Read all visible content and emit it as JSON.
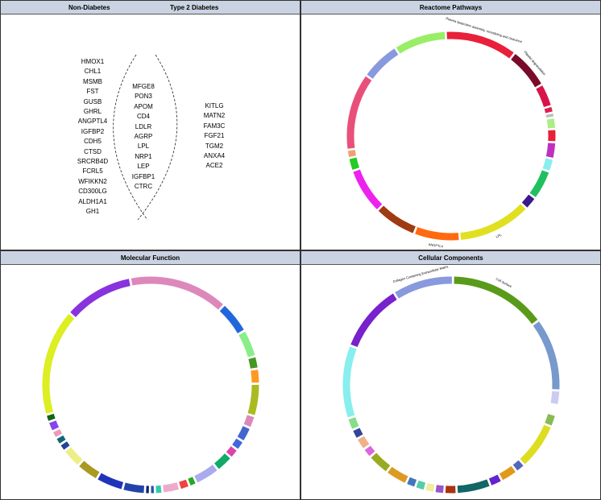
{
  "venn": {
    "non_diabetes_label": "Non-Diabetes",
    "type2_label": "Type 2 Diabetes",
    "non_diabetes_genes": [
      "HMOX1",
      "CHL1",
      "MSMB",
      "FST",
      "GUSB",
      "GHRL",
      "ANGPTL4",
      "IGFBP2",
      "CDH5",
      "CTSD",
      "SRCRB4D",
      "FCRL5",
      "WFIKKN2",
      "CD300LG",
      "ALDH1A1",
      "GH1"
    ],
    "shared_genes": [
      "MFGE8",
      "PON3",
      "APOM",
      "CD4",
      "LDLR",
      "AGRP",
      "LPL",
      "NRP1",
      "LEP",
      "IGFBP1",
      "CTRC"
    ],
    "type2_genes": [
      "KITLG",
      "MATN2",
      "FAM3C",
      "FGF21",
      "TGM2",
      "ANXA4",
      "ACE2"
    ]
  },
  "chart_data": [
    {
      "type": "chord",
      "title": "Reactome Pathways",
      "segments": [
        {
          "label": "Plasma lipoprotein assembly, remodeling and clearance",
          "value": 44,
          "color": "#e8203a"
        },
        {
          "label": "Platelet degranulation",
          "value": 25,
          "color": "#7a0a2a"
        },
        {
          "label": "",
          "value": 14,
          "color": "#d8134a"
        },
        {
          "label": "",
          "value": 4,
          "color": "#dd2050"
        },
        {
          "label": "",
          "value": 3,
          "color": "#bbbbbb"
        },
        {
          "label": "",
          "value": 7,
          "color": "#aaee88"
        },
        {
          "label": "",
          "value": 8,
          "color": "#e8203a"
        },
        {
          "label": "",
          "value": 10,
          "color": "#c030c0"
        },
        {
          "label": "",
          "value": 8,
          "color": "#88eeee"
        },
        {
          "label": "",
          "value": 18,
          "color": "#20c060"
        },
        {
          "label": "",
          "value": 8,
          "color": "#3a1a8a"
        },
        {
          "label": "LPL",
          "value": 45,
          "color": "#e0e020"
        },
        {
          "label": "ANGPTL4",
          "value": 28,
          "color": "#ff6a10"
        },
        {
          "label": "",
          "value": 26,
          "color": "#a03a10"
        },
        {
          "label": "",
          "value": 28,
          "color": "#ee22ee"
        },
        {
          "label": "",
          "value": 8,
          "color": "#22cc22"
        },
        {
          "label": "",
          "value": 5,
          "color": "#f0a070"
        },
        {
          "label": "",
          "value": 47,
          "color": "#e8507a"
        },
        {
          "label": "",
          "value": 24,
          "color": "#8899dd"
        },
        {
          "label": "",
          "value": 32,
          "color": "#99ee66"
        }
      ]
    },
    {
      "type": "chord",
      "title": "Molecular Function",
      "segments": [
        {
          "label": "",
          "value": 40,
          "color": "#dd88bb"
        },
        {
          "label": "",
          "value": 13,
          "color": "#2266dd"
        },
        {
          "label": "",
          "value": 11,
          "color": "#88ee88"
        },
        {
          "label": "",
          "value": 5,
          "color": "#449922"
        },
        {
          "label": "",
          "value": 6,
          "color": "#ff9922"
        },
        {
          "label": "",
          "value": 13,
          "color": "#aabb22"
        },
        {
          "label": "",
          "value": 5,
          "color": "#dd88bb"
        },
        {
          "label": "",
          "value": 6,
          "color": "#4466cc"
        },
        {
          "label": "",
          "value": 4,
          "color": "#4466dd"
        },
        {
          "label": "",
          "value": 4,
          "color": "#dd44aa"
        },
        {
          "label": "",
          "value": 7,
          "color": "#11aa66"
        },
        {
          "label": "",
          "value": 10,
          "color": "#aaaaee"
        },
        {
          "label": "",
          "value": 3,
          "color": "#22aa22"
        },
        {
          "label": "",
          "value": 4,
          "color": "#ee4444"
        },
        {
          "label": "",
          "value": 7,
          "color": "#eeaacc"
        },
        {
          "label": "",
          "value": 3,
          "color": "#33ccaa"
        },
        {
          "label": "",
          "value": 2,
          "color": "#2255aa"
        },
        {
          "label": "",
          "value": 2,
          "color": "#112266"
        },
        {
          "label": "",
          "value": 9,
          "color": "#2244aa"
        },
        {
          "label": "",
          "value": 11,
          "color": "#2233bb"
        },
        {
          "label": "",
          "value": 9,
          "color": "#aa9922"
        },
        {
          "label": "",
          "value": 8,
          "color": "#eeee88"
        },
        {
          "label": "",
          "value": 3,
          "color": "#224499"
        },
        {
          "label": "",
          "value": 3,
          "color": "#116677"
        },
        {
          "label": "",
          "value": 3,
          "color": "#ee99bb"
        },
        {
          "label": "",
          "value": 4,
          "color": "#8844ee"
        },
        {
          "label": "",
          "value": 3,
          "color": "#116611"
        },
        {
          "label": "",
          "value": 43,
          "color": "#ddee22"
        },
        {
          "label": "",
          "value": 28,
          "color": "#8833dd"
        }
      ]
    },
    {
      "type": "chord",
      "title": "Cellular Components",
      "segments": [
        {
          "label": "Cell Surface",
          "value": 40,
          "color": "#5a9a1a"
        },
        {
          "label": "",
          "value": 30,
          "color": "#7799cc"
        },
        {
          "label": "",
          "value": 6,
          "color": "#ccccf0"
        },
        {
          "label": "",
          "value": 4,
          "color": "#ffffff"
        },
        {
          "label": "",
          "value": 5,
          "color": "#88bb55"
        },
        {
          "label": "",
          "value": 19,
          "color": "#dddd22"
        },
        {
          "label": "",
          "value": 4,
          "color": "#5566bb"
        },
        {
          "label": "",
          "value": 7,
          "color": "#e09a1a"
        },
        {
          "label": "",
          "value": 5,
          "color": "#6622cc"
        },
        {
          "label": "",
          "value": 14,
          "color": "#116666"
        },
        {
          "label": "",
          "value": 5,
          "color": "#aa3311"
        },
        {
          "label": "",
          "value": 4,
          "color": "#9955cc"
        },
        {
          "label": "",
          "value": 4,
          "color": "#eeee99"
        },
        {
          "label": "",
          "value": 4,
          "color": "#55ccaa"
        },
        {
          "label": "",
          "value": 4,
          "color": "#4477bb"
        },
        {
          "label": "",
          "value": 9,
          "color": "#dd9922"
        },
        {
          "label": "",
          "value": 9,
          "color": "#99aa22"
        },
        {
          "label": "",
          "value": 4,
          "color": "#dd66dd"
        },
        {
          "label": "",
          "value": 5,
          "color": "#f0b088"
        },
        {
          "label": "",
          "value": 4,
          "color": "#334499"
        },
        {
          "label": "",
          "value": 5,
          "color": "#88dd88"
        },
        {
          "label": "",
          "value": 30,
          "color": "#88eeee"
        },
        {
          "label": "",
          "value": 28,
          "color": "#7722cc"
        },
        {
          "label": "Collagen Containing Extracellular Matrix",
          "value": 25,
          "color": "#8899dd"
        }
      ]
    }
  ]
}
